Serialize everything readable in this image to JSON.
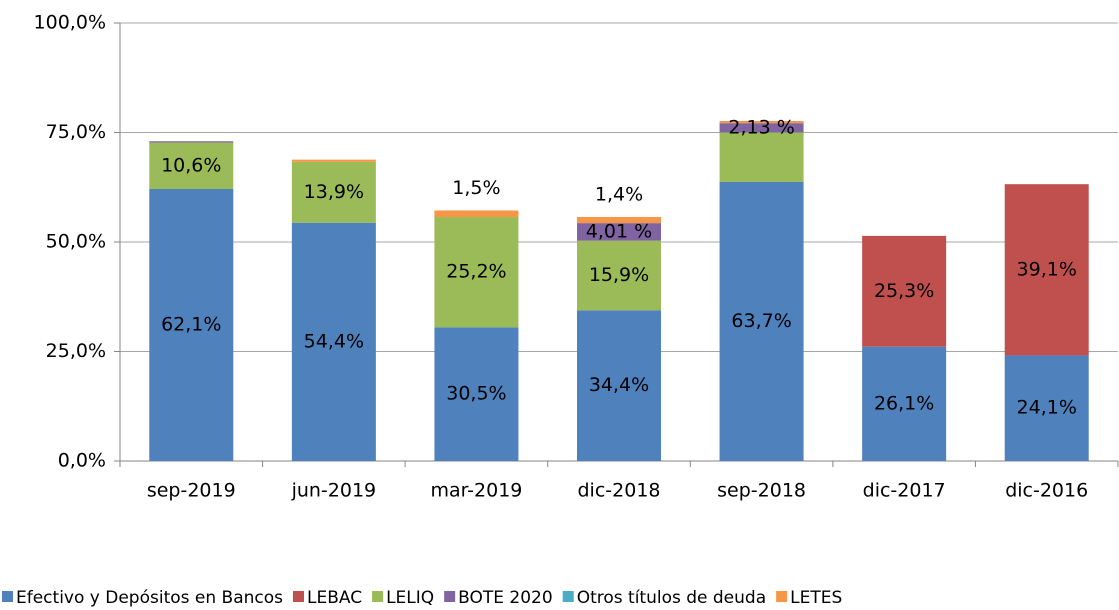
{
  "chart_data": {
    "type": "stacked_bar",
    "categories": [
      "sep-2019",
      "jun-2019",
      "mar-2019",
      "dic-2018",
      "sep-2018",
      "dic-2017",
      "dic-2016"
    ],
    "series": [
      {
        "name": "Efectivo y Depósitos en Bancos",
        "color": "#4f81bd",
        "values": [
          62.1,
          54.4,
          30.5,
          34.4,
          63.7,
          26.1,
          24.1
        ],
        "value_labels": [
          "62,1%",
          "54,4%",
          "30,5%",
          "34,4%",
          "63,7%",
          "26,1%",
          "24,1%"
        ]
      },
      {
        "name": "LEBAC",
        "color": "#c0504d",
        "values": [
          null,
          null,
          null,
          null,
          null,
          25.3,
          39.1
        ],
        "value_labels": [
          null,
          null,
          null,
          null,
          null,
          "25,3%",
          "39,1%"
        ]
      },
      {
        "name": "LELIQ",
        "color": "#9bbb59",
        "values": [
          10.6,
          13.9,
          25.2,
          15.9,
          11.3,
          null,
          null
        ],
        "value_labels": [
          "10,6%",
          "13,9%",
          "25,2%",
          "15,9%",
          null,
          null,
          null
        ]
      },
      {
        "name": "BOTE 2020",
        "color": "#8064a2",
        "values": [
          0.3,
          null,
          null,
          4.01,
          2.13,
          null,
          null
        ],
        "value_labels": [
          null,
          null,
          null,
          "4,01 %",
          "2,13 %",
          null,
          null
        ]
      },
      {
        "name": "Otros títulos de deuda",
        "color": "#4bacc6",
        "values": [
          null,
          null,
          null,
          null,
          null,
          null,
          null
        ]
      },
      {
        "name": "LETES",
        "color": "#f79646",
        "values": [
          null,
          0.5,
          1.5,
          1.4,
          0.5,
          null,
          null
        ],
        "value_labels": [
          null,
          null,
          "1,5%",
          "1,4%",
          null,
          null,
          null
        ]
      }
    ],
    "ylim": [
      0,
      100
    ],
    "yticks": [
      {
        "value": 0,
        "label": "0,0%"
      },
      {
        "value": 25,
        "label": "25,0%"
      },
      {
        "value": 50,
        "label": "50,0%"
      },
      {
        "value": 75,
        "label": "75,0%"
      },
      {
        "value": 100,
        "label": "100,0%"
      }
    ],
    "grid": true,
    "legend": "bottom"
  }
}
